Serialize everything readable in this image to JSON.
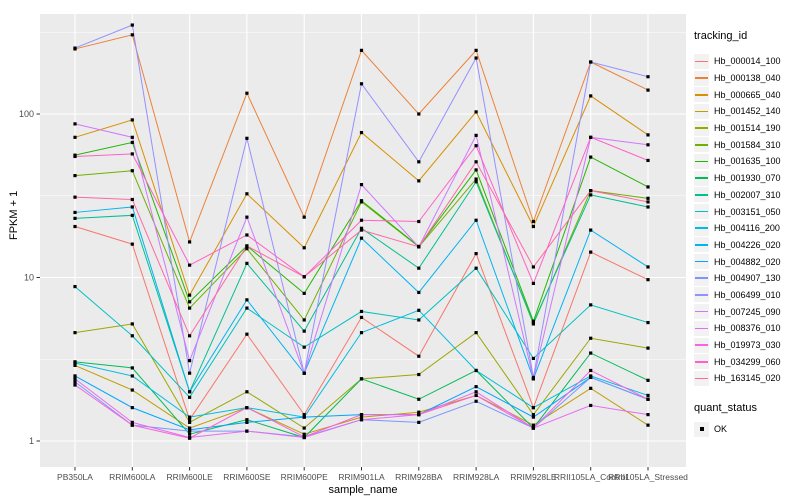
{
  "chart_data": {
    "type": "line",
    "title": "",
    "xlabel": "sample_name",
    "ylabel": "FPKM + 1",
    "y_scale": "log10",
    "y_ticks": [
      1,
      10,
      100
    ],
    "y_minor_ticks": [
      3.162,
      31.62,
      316.2
    ],
    "ylim": [
      0.69,
      420
    ],
    "grid": true,
    "legend_position": "right",
    "panel_bg": "#EBEBEB",
    "grid_color": "#FFFFFF",
    "tick_color": "#333333",
    "tick_label_color": "#4D4D4D",
    "marker": {
      "shape": "square",
      "color": "#000000",
      "size": 3.2
    },
    "x_categories": [
      "PB350LA",
      "RRIM600LA",
      "RRIM600LE",
      "RRIM600SE",
      "RRIM600PE",
      "RRIM901LA",
      "RRIM928BA",
      "RRIM928LA",
      "RRIM928LE",
      "RRII105LA_Control",
      "RRII105LA_Stressed"
    ],
    "legend_title": "tracking_id",
    "series": [
      {
        "name": "Hb_000014_100",
        "color": "#F8766D",
        "values": [
          20.5,
          16,
          1.35,
          4.5,
          1.45,
          5.7,
          3.3,
          14,
          1.6,
          14.3,
          9.7
        ]
      },
      {
        "name": "Hb_000138_040",
        "color": "#EC8239",
        "values": [
          250,
          305,
          16.5,
          134,
          23.4,
          245,
          100,
          245,
          22,
          208,
          140
        ]
      },
      {
        "name": "Hb_000665_040",
        "color": "#D89000",
        "values": [
          72,
          92,
          7.8,
          32.5,
          15.2,
          77,
          39,
          103,
          20.5,
          129,
          74.5
        ]
      },
      {
        "name": "Hb_001452_140",
        "color": "#BF9C00",
        "values": [
          2.9,
          2.05,
          1.2,
          1.6,
          1.1,
          1.4,
          1.5,
          1.9,
          1.25,
          2.1,
          1.25
        ]
      },
      {
        "name": "Hb_001514_190",
        "color": "#9CA700",
        "values": [
          4.6,
          5.2,
          1.3,
          2.0,
          1.2,
          2.4,
          2.55,
          4.6,
          1.45,
          4.25,
          3.7
        ]
      },
      {
        "name": "Hb_001584_310",
        "color": "#6FB000",
        "values": [
          42,
          45,
          6.5,
          15,
          5.5,
          29,
          15.4,
          40,
          5.2,
          34,
          30.5
        ]
      },
      {
        "name": "Hb_001635_100",
        "color": "#24B700",
        "values": [
          56,
          67,
          7.1,
          15.6,
          8.0,
          29.5,
          15.5,
          45.5,
          5.4,
          54.5,
          35.8
        ]
      },
      {
        "name": "Hb_001930_070",
        "color": "#00BC56",
        "values": [
          3.05,
          2.8,
          1.1,
          1.35,
          1.05,
          2.4,
          1.8,
          2.7,
          1.2,
          3.45,
          2.35
        ]
      },
      {
        "name": "Hb_002007_310",
        "color": "#00C092",
        "values": [
          23,
          24,
          2.0,
          12.2,
          4.7,
          20,
          11.4,
          38.5,
          5.3,
          32,
          27
        ]
      },
      {
        "name": "Hb_003151_050",
        "color": "#00C1C0",
        "values": [
          8.8,
          4.4,
          1.85,
          6.5,
          3.75,
          6.2,
          5.5,
          11.4,
          3.2,
          6.8,
          5.3
        ]
      },
      {
        "name": "Hb_004116_200",
        "color": "#00BDE0",
        "values": [
          3.0,
          2.5,
          1.4,
          1.6,
          1.4,
          4.6,
          6.3,
          2.7,
          1.6,
          2.5,
          1.9
        ]
      },
      {
        "name": "Hb_004226_020",
        "color": "#00B3F2",
        "values": [
          25,
          27,
          2.0,
          7.3,
          2.6,
          17.4,
          8.1,
          22.4,
          2.4,
          19.5,
          11.6
        ]
      },
      {
        "name": "Hb_004882_020",
        "color": "#00A5FF",
        "values": [
          2.5,
          1.6,
          1.17,
          1.3,
          1.4,
          1.45,
          1.45,
          2.15,
          1.4,
          2.45,
          1.8
        ]
      },
      {
        "name": "Hb_004907_130",
        "color": "#7C96FF",
        "values": [
          2.3,
          1.25,
          1.15,
          1.15,
          1.06,
          1.35,
          1.3,
          1.75,
          1.2,
          2.45,
          1.8
        ]
      },
      {
        "name": "Hb_006499_010",
        "color": "#9590FF",
        "values": [
          253,
          350,
          2.6,
          71,
          2.6,
          153,
          51,
          220,
          2.45,
          208,
          169
        ]
      },
      {
        "name": "Hb_007245_090",
        "color": "#CF78FF",
        "values": [
          87,
          72,
          3.1,
          23.4,
          2.6,
          37,
          15.4,
          74,
          2.4,
          72,
          64.8
        ]
      },
      {
        "name": "Hb_008376_010",
        "color": "#E56DF1",
        "values": [
          2.4,
          1.3,
          1.05,
          1.15,
          1.05,
          1.35,
          1.45,
          2.0,
          1.2,
          1.65,
          1.45
        ]
      },
      {
        "name": "Hb_019973_030",
        "color": "#F863DF",
        "values": [
          2.2,
          1.25,
          1.04,
          1.6,
          1.06,
          1.45,
          1.45,
          1.9,
          1.2,
          2.7,
          1.8
        ]
      },
      {
        "name": "Hb_034299_060",
        "color": "#FF61C7",
        "values": [
          55,
          57,
          11.9,
          18.2,
          10.1,
          22.4,
          22,
          64,
          9.2,
          72,
          52
        ]
      },
      {
        "name": "Hb_163145_020",
        "color": "#FF68A5",
        "values": [
          31,
          30,
          4.4,
          15.6,
          10.1,
          19.5,
          15.4,
          51,
          11.6,
          34,
          29
        ]
      }
    ],
    "legend2": {
      "title": "quant_status",
      "items": [
        {
          "label": "OK",
          "marker": "black-square"
        }
      ]
    }
  }
}
